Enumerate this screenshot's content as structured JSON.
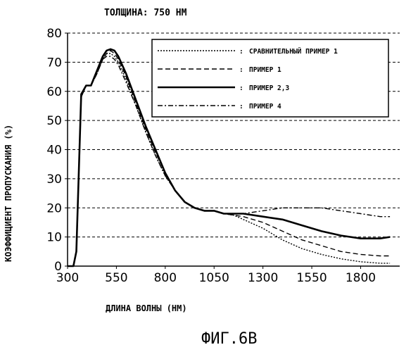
{
  "chart_data": {
    "type": "line",
    "title": "ТОЛЩИНА: 750 НМ",
    "xlabel": "ДЛИНА ВОЛНЫ (НМ)",
    "ylabel": "КОЭФФИЦИЕНТ ПРОПУСКАНИЯ (%)",
    "caption": "ФИГ.6В",
    "xlim": [
      300,
      2000
    ],
    "ylim": [
      0,
      80
    ],
    "xticks": [
      300,
      550,
      800,
      1050,
      1300,
      1550,
      1800
    ],
    "yticks": [
      0,
      10,
      20,
      30,
      40,
      50,
      60,
      70,
      80
    ],
    "grid": "horizontal dashed",
    "legend_position": "top-right",
    "series": [
      {
        "name": "СРАВНИТЕЛЬНЫЙ ПРИМЕР 1",
        "style": "dotted",
        "x": [
          300,
          330,
          345,
          370,
          395,
          420,
          450,
          480,
          500,
          520,
          540,
          560,
          600,
          650,
          700,
          750,
          800,
          850,
          900,
          950,
          1000,
          1050,
          1100,
          1150,
          1200,
          1300,
          1400,
          1500,
          1600,
          1700,
          1800,
          1900,
          1950
        ],
        "y": [
          0,
          0,
          5,
          58,
          62,
          62,
          66,
          71,
          73,
          73,
          72,
          70,
          64,
          55,
          46,
          38,
          31,
          26,
          22,
          20,
          19,
          19,
          18,
          17.5,
          16,
          13,
          9,
          6,
          4,
          2.5,
          1.5,
          1,
          1
        ]
      },
      {
        "name": "ПРИМЕР 1",
        "style": "dashed",
        "x": [
          300,
          330,
          345,
          370,
          395,
          420,
          450,
          480,
          500,
          520,
          540,
          560,
          600,
          650,
          700,
          750,
          800,
          850,
          900,
          950,
          1000,
          1050,
          1100,
          1150,
          1200,
          1300,
          1400,
          1500,
          1600,
          1700,
          1800,
          1900,
          1950
        ],
        "y": [
          0,
          0,
          5,
          58,
          62,
          62,
          66,
          71,
          73,
          74,
          73,
          71,
          65,
          56,
          47,
          39,
          32,
          26,
          22,
          20,
          19,
          19,
          18,
          17.5,
          17,
          15,
          12,
          9,
          7,
          5,
          4,
          3.5,
          3.5
        ]
      },
      {
        "name": "ПРИМЕР 2,3",
        "style": "solid",
        "x": [
          300,
          330,
          345,
          370,
          395,
          420,
          450,
          480,
          500,
          520,
          540,
          560,
          600,
          650,
          700,
          750,
          800,
          850,
          900,
          950,
          1000,
          1050,
          1100,
          1150,
          1200,
          1300,
          1400,
          1500,
          1600,
          1700,
          1800,
          1900,
          1950
        ],
        "y": [
          0,
          0,
          5,
          59,
          62,
          62,
          67,
          72,
          74,
          74.5,
          74,
          72,
          66,
          57,
          48,
          40,
          32,
          26,
          22,
          20,
          19,
          19,
          18,
          18,
          18,
          17,
          16,
          14,
          12,
          10.5,
          9.5,
          9.5,
          10
        ]
      },
      {
        "name": "ПРИМЕР 4",
        "style": "dash-dot",
        "x": [
          300,
          330,
          345,
          370,
          395,
          420,
          450,
          480,
          500,
          520,
          540,
          560,
          600,
          650,
          700,
          750,
          800,
          850,
          900,
          950,
          1000,
          1050,
          1100,
          1150,
          1200,
          1300,
          1400,
          1500,
          1600,
          1700,
          1800,
          1900,
          1950
        ],
        "y": [
          0,
          0,
          5,
          58,
          62,
          62,
          66,
          71,
          72,
          72,
          71,
          69,
          63,
          55,
          46,
          38,
          31,
          26,
          22,
          20,
          19,
          19,
          18,
          18,
          18,
          19,
          20,
          20,
          20,
          19,
          18,
          17,
          17
        ]
      }
    ]
  }
}
